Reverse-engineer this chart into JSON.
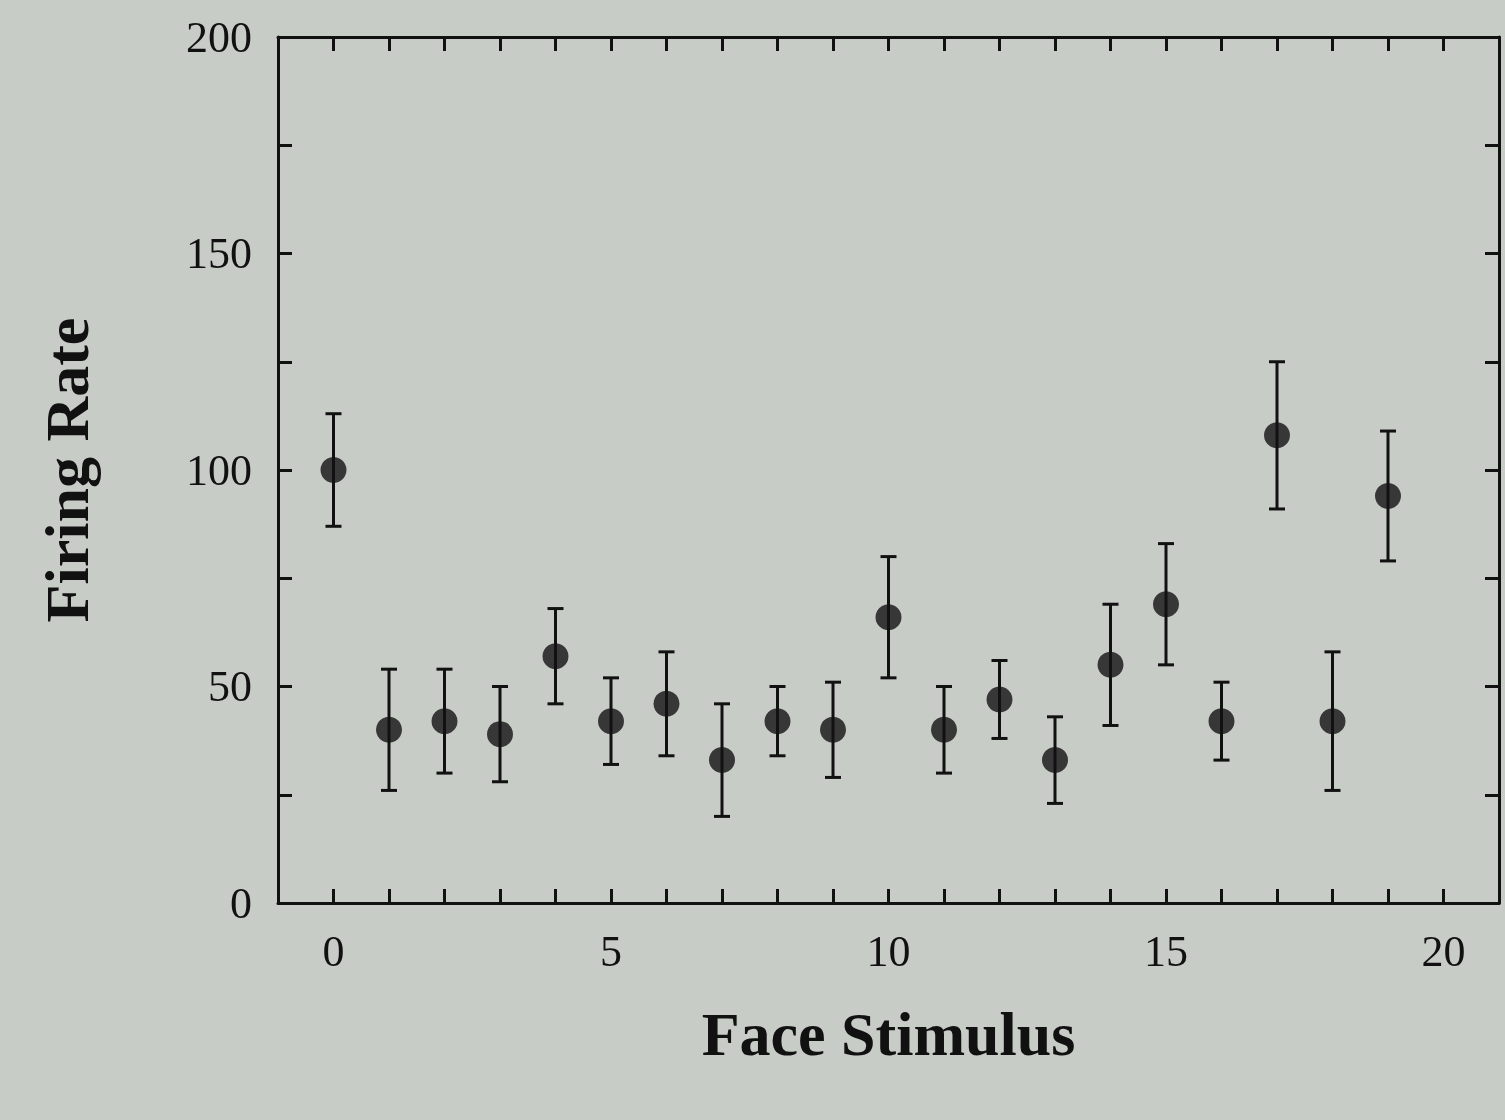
{
  "chart_data": {
    "type": "scatter",
    "xlabel": "Face Stimulus",
    "ylabel": "Firing Rate",
    "x": [
      0,
      1,
      2,
      3,
      4,
      5,
      6,
      7,
      8,
      9,
      10,
      11,
      12,
      13,
      14,
      15,
      16,
      17,
      18,
      19
    ],
    "series": [
      {
        "color": "#111111",
        "values": [
          100,
          40,
          42,
          39,
          57,
          42,
          46,
          33,
          42,
          40,
          66,
          40,
          47,
          33,
          55,
          69,
          42,
          108,
          42,
          94
        ],
        "errors": [
          13,
          14,
          12,
          11,
          11,
          10,
          12,
          13,
          8,
          11,
          14,
          10,
          9,
          10,
          14,
          14,
          9,
          17,
          16,
          15
        ]
      }
    ],
    "xlim": [
      -1,
      21
    ],
    "xticks": [
      0,
      {
        "value": 1,
        "label": null
      },
      {
        "value": 2,
        "label": null
      },
      {
        "value": 3,
        "label": null
      },
      {
        "value": 4,
        "label": null
      },
      5,
      {
        "value": 6,
        "label": null
      },
      {
        "value": 7,
        "label": null
      },
      {
        "value": 8,
        "label": null
      },
      {
        "value": 9,
        "label": null
      },
      10,
      {
        "value": 11,
        "label": null
      },
      {
        "value": 12,
        "label": null
      },
      {
        "value": 13,
        "label": null
      },
      {
        "value": 14,
        "label": null
      },
      15,
      {
        "value": 16,
        "label": null
      },
      {
        "value": 17,
        "label": null
      },
      {
        "value": 18,
        "label": null
      },
      {
        "value": 19,
        "label": null
      },
      20
    ],
    "ylim": [
      0,
      200
    ],
    "yticks": [
      0,
      {
        "value": 25,
        "label": null
      },
      50,
      {
        "value": 75,
        "label": null
      },
      100,
      {
        "value": 125,
        "label": null
      },
      150,
      {
        "value": 175,
        "label": null
      },
      200
    ],
    "grid": false,
    "legend": false,
    "marker": "circle"
  }
}
